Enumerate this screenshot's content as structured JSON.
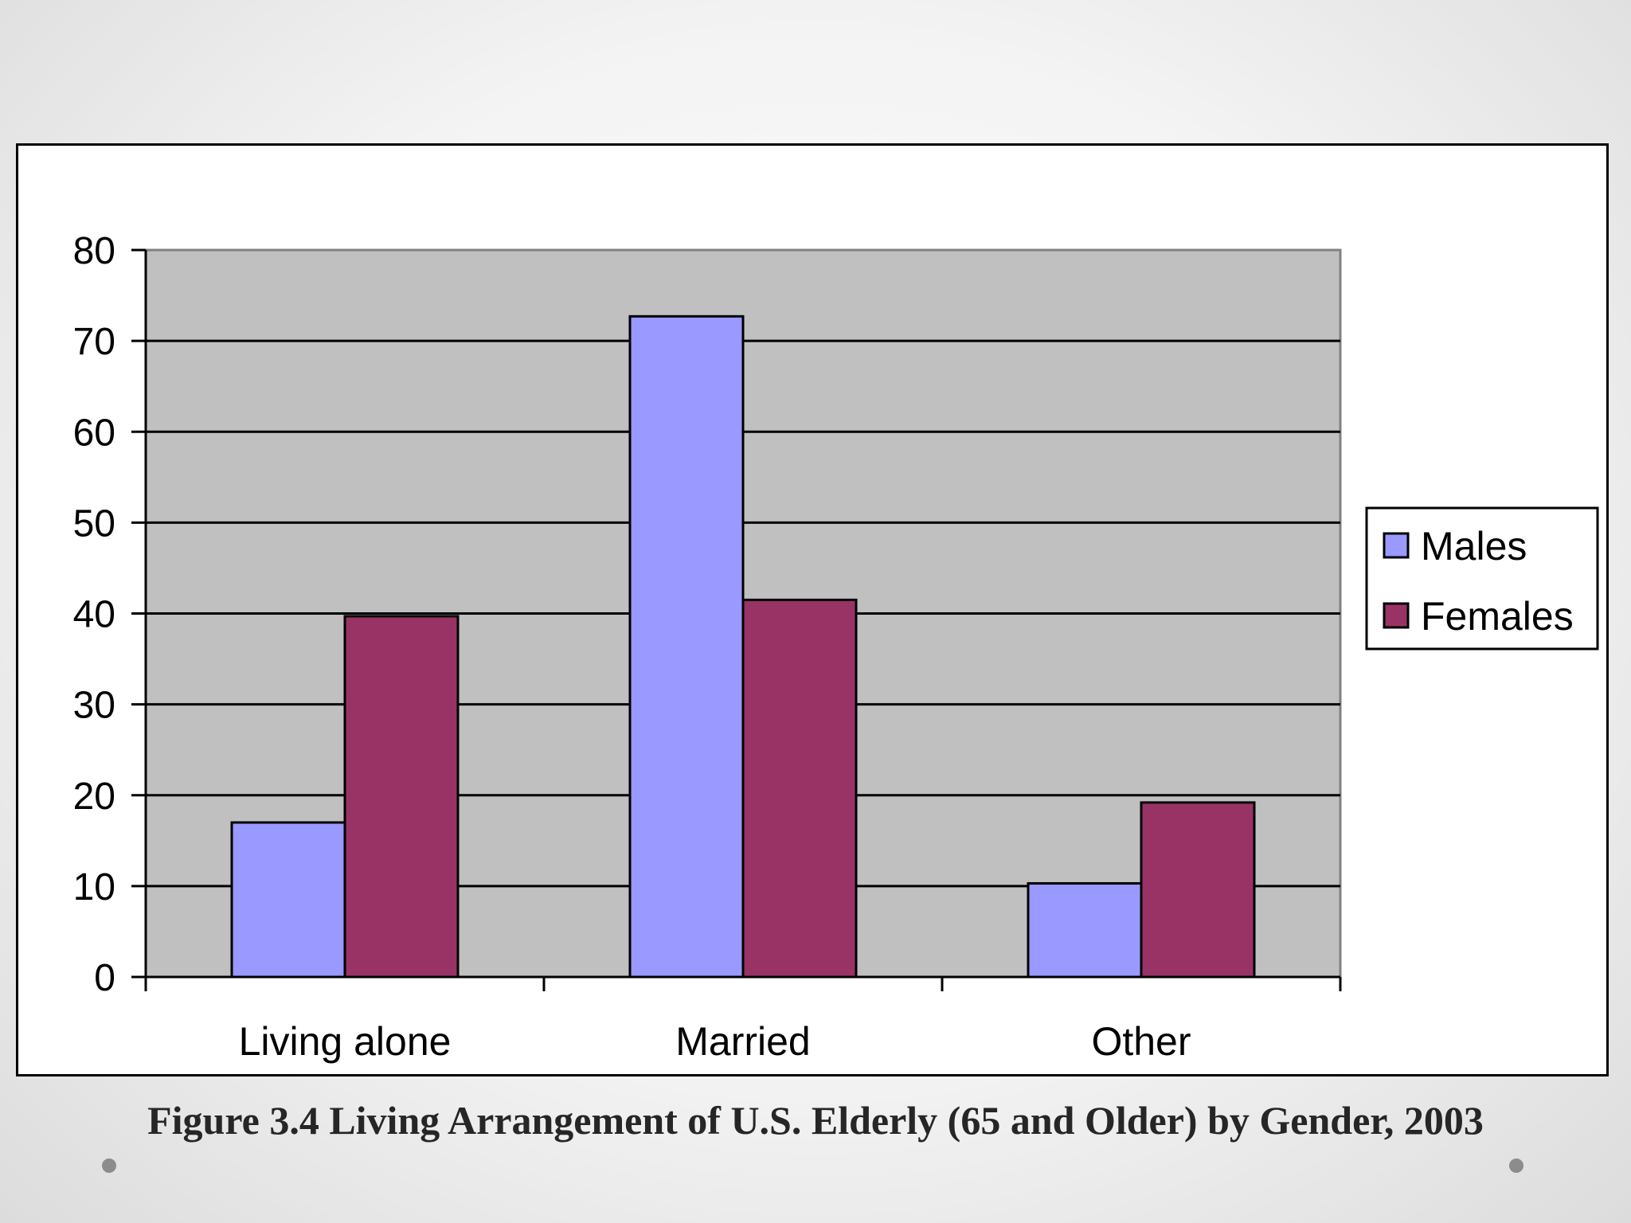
{
  "caption": "Figure 3.4 Living Arrangement of U.S. Elderly (65 and Older) by Gender, 2003",
  "chart_data": {
    "type": "bar",
    "title": "",
    "xlabel": "",
    "ylabel": "",
    "categories": [
      "Living alone",
      "Married",
      "Other"
    ],
    "series": [
      {
        "name": "Males",
        "color": "#9999ff",
        "values": [
          17,
          72.7,
          10.3
        ]
      },
      {
        "name": "Females",
        "color": "#993366",
        "values": [
          39.7,
          41.5,
          19.2
        ]
      }
    ],
    "ylim": [
      0,
      80
    ],
    "yticks": [
      0,
      10,
      20,
      30,
      40,
      50,
      60,
      70,
      80
    ],
    "grid": true,
    "plot_background": "#c0c0c0",
    "legend_position": "right"
  }
}
